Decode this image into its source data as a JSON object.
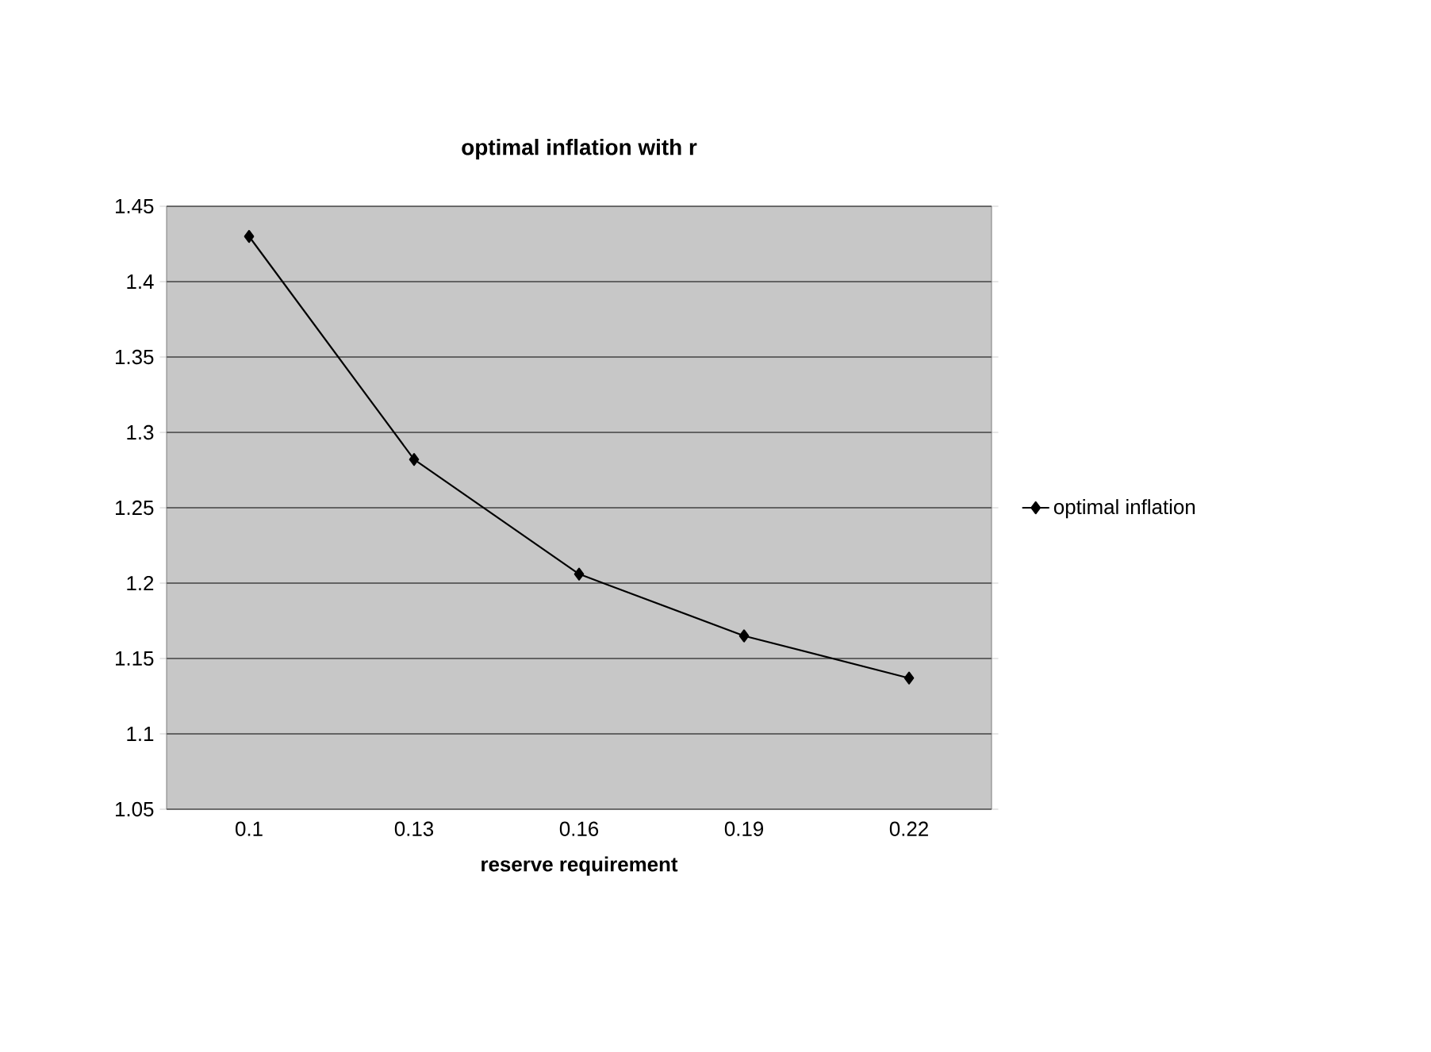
{
  "chart_data": {
    "type": "line",
    "title": "optimal inflation with r",
    "xlabel": "reserve requirement",
    "categories": [
      "0.1",
      "0.13",
      "0.16",
      "0.19",
      "0.22"
    ],
    "series": [
      {
        "name": "optimal inflation",
        "color": "#000000",
        "values": [
          1.43,
          1.282,
          1.206,
          1.165,
          1.137
        ]
      }
    ],
    "ylim": [
      1.05,
      1.45
    ],
    "yticks": [
      1.05,
      1.1,
      1.15,
      1.2,
      1.25,
      1.3,
      1.35,
      1.4,
      1.45
    ],
    "grid": "y",
    "legend": "right",
    "marker": "diamond",
    "line_style": "solid"
  }
}
